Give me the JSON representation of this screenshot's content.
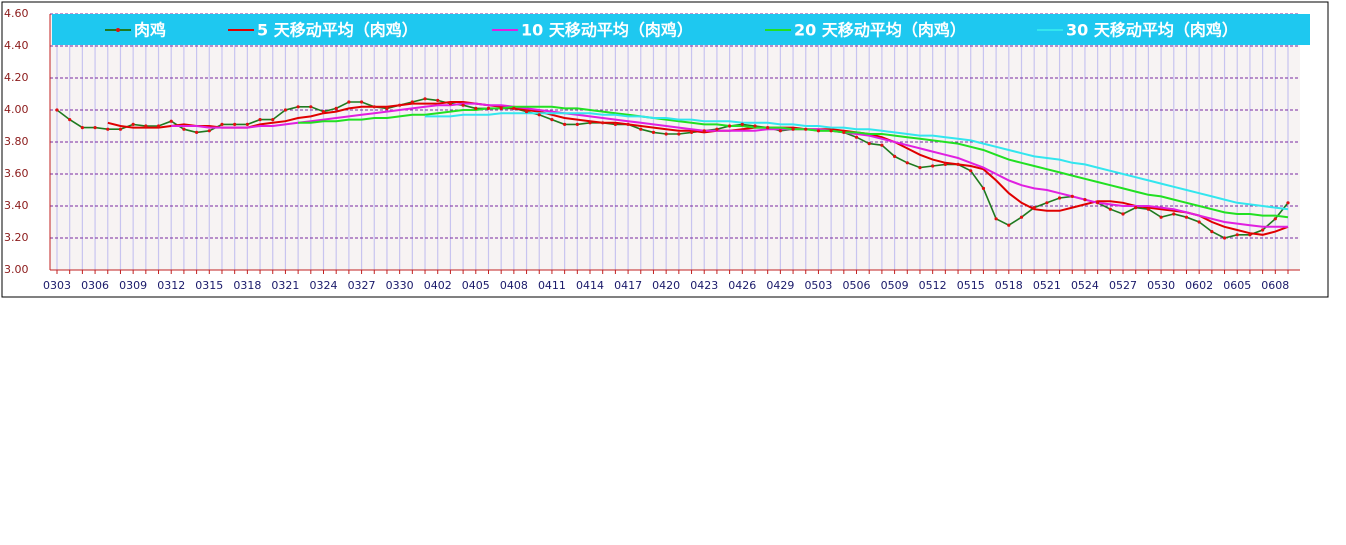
{
  "chart_data": {
    "type": "line",
    "categories": [
      "0303",
      null,
      null,
      "0306",
      null,
      null,
      "0309",
      null,
      null,
      "0312",
      null,
      null,
      "0315",
      null,
      null,
      "0318",
      null,
      null,
      "0321",
      null,
      null,
      "0324",
      null,
      null,
      "0327",
      null,
      null,
      "0330",
      null,
      null,
      "0402",
      null,
      null,
      "0405",
      null,
      null,
      "0408",
      null,
      null,
      "0411",
      null,
      null,
      "0414",
      null,
      null,
      "0417",
      null,
      null,
      "0420",
      null,
      null,
      "0423",
      null,
      null,
      "0426",
      null,
      null,
      "0429",
      null,
      null,
      "0503",
      null,
      null,
      "0506",
      null,
      null,
      "0509",
      null,
      null,
      "0512",
      null,
      null,
      "0515",
      null,
      null,
      "0518",
      null,
      null,
      "0521",
      null,
      null,
      "0524",
      null,
      null,
      "0527",
      null,
      null,
      "0530",
      null,
      null,
      "0602",
      null,
      null,
      "0605",
      null,
      null,
      "0608",
      null
    ],
    "ylim": [
      3.0,
      4.6
    ],
    "yticks": [
      {
        "value": 3.0,
        "label": "3.00"
      },
      {
        "value": 3.2,
        "label": "3.20"
      },
      {
        "value": 3.4,
        "label": "3.40"
      },
      {
        "value": 3.6,
        "label": "3.60"
      },
      {
        "value": 3.8,
        "label": "3.80"
      },
      {
        "value": 4.0,
        "label": "4.00"
      },
      {
        "value": 4.2,
        "label": "4.20"
      },
      {
        "value": 4.4,
        "label": "4.40"
      },
      {
        "value": 4.6,
        "label": "4.60"
      }
    ],
    "grid": true,
    "legend": "top",
    "series": [
      {
        "name": "肉鸡",
        "color": "#1f7a1f",
        "marker_color": "#e01010",
        "values": [
          4.0,
          3.94,
          3.89,
          3.89,
          3.88,
          3.88,
          3.91,
          3.9,
          3.9,
          3.93,
          3.88,
          3.86,
          3.87,
          3.91,
          3.91,
          3.91,
          3.94,
          3.94,
          4.0,
          4.02,
          4.02,
          3.99,
          4.01,
          4.05,
          4.05,
          4.02,
          4.01,
          4.03,
          4.05,
          4.07,
          4.06,
          4.04,
          4.03,
          4.01,
          4.01,
          4.01,
          4.01,
          3.99,
          3.97,
          3.94,
          3.91,
          3.91,
          3.92,
          3.92,
          3.91,
          3.91,
          3.88,
          3.86,
          3.85,
          3.85,
          3.86,
          3.87,
          3.88,
          3.9,
          3.91,
          3.9,
          3.89,
          3.87,
          3.88,
          3.88,
          3.87,
          3.87,
          3.86,
          3.83,
          3.79,
          3.78,
          3.71,
          3.67,
          3.64,
          3.65,
          3.66,
          3.66,
          3.62,
          3.51,
          3.32,
          3.28,
          3.33,
          3.39,
          3.42,
          3.45,
          3.46,
          3.44,
          3.42,
          3.38,
          3.35,
          3.39,
          3.38,
          3.33,
          3.35,
          3.33,
          3.3,
          3.24,
          3.2,
          3.22,
          3.22,
          3.25,
          3.32,
          3.42
        ]
      },
      {
        "name": "5 天移动平均（肉鸡）",
        "color": "#e00000",
        "values": [
          null,
          null,
          null,
          null,
          3.92,
          3.9,
          3.89,
          3.89,
          3.89,
          3.9,
          3.91,
          3.9,
          3.9,
          3.89,
          3.89,
          3.89,
          3.91,
          3.92,
          3.93,
          3.95,
          3.96,
          3.98,
          3.99,
          4.01,
          4.02,
          4.02,
          4.02,
          4.03,
          4.04,
          4.04,
          4.04,
          4.05,
          4.05,
          4.04,
          4.03,
          4.02,
          4.01,
          4.0,
          3.99,
          3.97,
          3.95,
          3.94,
          3.93,
          3.92,
          3.92,
          3.91,
          3.9,
          3.89,
          3.88,
          3.87,
          3.87,
          3.86,
          3.87,
          3.87,
          3.88,
          3.89,
          3.89,
          3.89,
          3.89,
          3.88,
          3.88,
          3.88,
          3.87,
          3.86,
          3.85,
          3.83,
          3.8,
          3.76,
          3.72,
          3.69,
          3.67,
          3.66,
          3.65,
          3.63,
          3.56,
          3.48,
          3.42,
          3.38,
          3.37,
          3.37,
          3.39,
          3.41,
          3.43,
          3.43,
          3.42,
          3.4,
          3.39,
          3.38,
          3.37,
          3.36,
          3.34,
          3.3,
          3.27,
          3.25,
          3.23,
          3.22,
          3.24,
          3.27
        ]
      },
      {
        "name": "10 天移动平均（肉鸡）",
        "color": "#e020e0",
        "values": [
          null,
          null,
          null,
          null,
          null,
          null,
          null,
          null,
          null,
          3.9,
          3.9,
          3.9,
          3.89,
          3.89,
          3.89,
          3.89,
          3.9,
          3.9,
          3.91,
          3.92,
          3.93,
          3.94,
          3.95,
          3.96,
          3.97,
          3.98,
          3.99,
          4.0,
          4.01,
          4.02,
          4.03,
          4.03,
          4.04,
          4.04,
          4.03,
          4.03,
          4.02,
          4.01,
          4.0,
          3.99,
          3.98,
          3.97,
          3.96,
          3.95,
          3.94,
          3.93,
          3.92,
          3.91,
          3.9,
          3.89,
          3.88,
          3.87,
          3.87,
          3.87,
          3.87,
          3.87,
          3.88,
          3.88,
          3.88,
          3.88,
          3.88,
          3.87,
          3.86,
          3.85,
          3.84,
          3.82,
          3.8,
          3.78,
          3.76,
          3.74,
          3.72,
          3.7,
          3.67,
          3.64,
          3.6,
          3.56,
          3.53,
          3.51,
          3.5,
          3.48,
          3.46,
          3.44,
          3.42,
          3.41,
          3.4,
          3.4,
          3.4,
          3.39,
          3.38,
          3.36,
          3.34,
          3.32,
          3.3,
          3.29,
          3.28,
          3.27,
          3.27,
          3.27
        ]
      },
      {
        "name": "20 天移动平均（肉鸡）",
        "color": "#22e022",
        "values": [
          null,
          null,
          null,
          null,
          null,
          null,
          null,
          null,
          null,
          null,
          null,
          null,
          null,
          null,
          null,
          null,
          null,
          null,
          null,
          3.92,
          3.92,
          3.93,
          3.93,
          3.94,
          3.94,
          3.95,
          3.95,
          3.96,
          3.97,
          3.97,
          3.98,
          3.99,
          4.0,
          4.0,
          4.01,
          4.01,
          4.02,
          4.02,
          4.02,
          4.02,
          4.01,
          4.01,
          4.0,
          3.99,
          3.98,
          3.97,
          3.96,
          3.95,
          3.94,
          3.93,
          3.92,
          3.91,
          3.91,
          3.9,
          3.9,
          3.89,
          3.89,
          3.89,
          3.88,
          3.88,
          3.87,
          3.87,
          3.86,
          3.86,
          3.85,
          3.85,
          3.84,
          3.83,
          3.82,
          3.81,
          3.8,
          3.79,
          3.77,
          3.75,
          3.72,
          3.69,
          3.67,
          3.65,
          3.63,
          3.61,
          3.59,
          3.57,
          3.55,
          3.53,
          3.51,
          3.49,
          3.47,
          3.46,
          3.44,
          3.42,
          3.4,
          3.38,
          3.36,
          3.35,
          3.35,
          3.34,
          3.34,
          3.33
        ]
      },
      {
        "name": "30 天移动平均（肉鸡）",
        "color": "#33e6ee",
        "values": [
          null,
          null,
          null,
          null,
          null,
          null,
          null,
          null,
          null,
          null,
          null,
          null,
          null,
          null,
          null,
          null,
          null,
          null,
          null,
          null,
          null,
          null,
          null,
          null,
          null,
          null,
          null,
          null,
          null,
          3.96,
          3.96,
          3.96,
          3.97,
          3.97,
          3.97,
          3.98,
          3.98,
          3.98,
          3.98,
          3.98,
          3.98,
          3.98,
          3.98,
          3.97,
          3.97,
          3.96,
          3.96,
          3.95,
          3.95,
          3.94,
          3.94,
          3.93,
          3.93,
          3.93,
          3.92,
          3.92,
          3.92,
          3.91,
          3.91,
          3.9,
          3.9,
          3.89,
          3.89,
          3.88,
          3.88,
          3.87,
          3.86,
          3.85,
          3.84,
          3.84,
          3.83,
          3.82,
          3.81,
          3.79,
          3.77,
          3.75,
          3.73,
          3.71,
          3.7,
          3.69,
          3.67,
          3.66,
          3.64,
          3.62,
          3.6,
          3.58,
          3.56,
          3.54,
          3.52,
          3.5,
          3.48,
          3.46,
          3.44,
          3.42,
          3.41,
          3.4,
          3.39,
          3.38
        ]
      }
    ]
  }
}
